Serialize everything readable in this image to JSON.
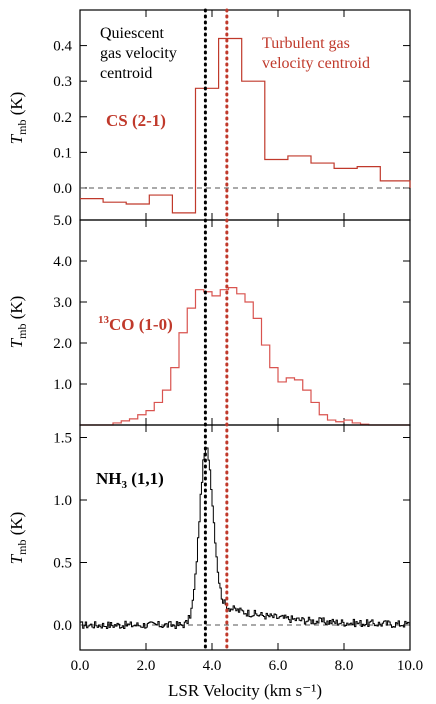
{
  "chart_data": {
    "type": "line",
    "xlabel": "LSR Velocity (km s⁻¹)",
    "xlim": [
      0,
      10
    ],
    "x_ticks": [
      "0.0",
      "2.0",
      "4.0",
      "6.0",
      "8.0",
      "10.0"
    ],
    "x_tick_values": [
      0,
      2,
      4,
      6,
      8,
      10
    ],
    "colors": {
      "cs": "#c0392b",
      "co": "#d9534f",
      "nh3": "#000000",
      "quiescent": "#000000",
      "turbulent": "#c0392b"
    },
    "vlines": [
      {
        "x": 3.8,
        "style": "dotted",
        "color": "#000000"
      },
      {
        "x": 4.45,
        "style": "dotted",
        "color": "#c0392b"
      }
    ],
    "annotations": {
      "quiescent": [
        "Quiescent",
        "gas velocity",
        "centroid"
      ],
      "turbulent": [
        "Turbulent gas",
        "velocity centroid"
      ]
    },
    "panels": [
      {
        "id": "cs",
        "ylabel_main": "T",
        "ylabel_sub": "mb",
        "ylabel_unit": " (K)",
        "ylim": [
          -0.09,
          0.5
        ],
        "y_ticks": [
          "0.4",
          "0.3",
          "0.2",
          "0.1",
          "0.0"
        ],
        "y_tick_values": [
          0.4,
          0.3,
          0.2,
          0.1,
          0.0
        ],
        "line_label": "CS (2-1)",
        "zero_line": true,
        "step": true,
        "series": {
          "name": "CS (2-1)",
          "x": [
            0.0,
            0.7,
            1.4,
            2.1,
            2.8,
            3.5,
            4.2,
            4.9,
            5.6,
            6.3,
            7.0,
            7.7,
            8.4,
            9.1,
            10.0
          ],
          "y": [
            -0.03,
            -0.04,
            -0.045,
            -0.02,
            -0.07,
            0.28,
            0.42,
            0.3,
            0.08,
            0.09,
            0.07,
            0.055,
            0.06,
            0.02,
            0.0
          ]
        }
      },
      {
        "id": "co",
        "ylabel_main": "T",
        "ylabel_sub": "mb",
        "ylabel_unit": " (K)",
        "ylim": [
          0,
          5.0
        ],
        "y_ticks": [
          "5.0",
          "4.0",
          "3.0",
          "2.0",
          "1.0"
        ],
        "y_tick_values": [
          5.0,
          4.0,
          3.0,
          2.0,
          1.0
        ],
        "line_label_sup": "13",
        "line_label": "CO (1-0)",
        "zero_line": false,
        "step": true,
        "series": {
          "name": "13CO (1-0)",
          "x": [
            0.0,
            0.25,
            0.5,
            0.75,
            1.0,
            1.25,
            1.5,
            1.75,
            2.0,
            2.25,
            2.5,
            2.75,
            3.0,
            3.25,
            3.5,
            3.75,
            4.0,
            4.25,
            4.5,
            4.75,
            5.0,
            5.25,
            5.5,
            5.75,
            6.0,
            6.25,
            6.5,
            6.75,
            7.0,
            7.25,
            7.5,
            7.75,
            8.0,
            8.25,
            8.5,
            8.75,
            9.0,
            9.25,
            9.5,
            9.75
          ],
          "y": [
            0.0,
            0.0,
            0.0,
            0.0,
            0.05,
            0.1,
            0.15,
            0.25,
            0.35,
            0.55,
            0.85,
            1.4,
            2.25,
            2.85,
            3.3,
            3.25,
            3.15,
            3.3,
            3.35,
            3.2,
            3.0,
            2.6,
            1.95,
            1.4,
            1.05,
            1.15,
            1.1,
            0.85,
            0.55,
            0.25,
            0.12,
            0.08,
            0.12,
            0.05,
            0.02,
            0.0,
            0.0,
            0.0,
            0.0,
            0.0
          ]
        }
      },
      {
        "id": "nh3",
        "ylabel_main": "T",
        "ylabel_sub": "mb",
        "ylabel_unit": " (K)",
        "ylim": [
          -0.2,
          1.6
        ],
        "y_ticks": [
          "1.5",
          "1.0",
          "0.5",
          "0.0"
        ],
        "y_tick_values": [
          1.5,
          1.0,
          0.5,
          0.0
        ],
        "line_label": "NH",
        "line_label_subscript": "3",
        "line_label_suffix": " (1,1)",
        "zero_line": true,
        "step": true,
        "series": {
          "name": "NH3 (1,1)",
          "peak_center": 3.8,
          "peak_height": 1.4,
          "peak_width": 0.2,
          "wing_level": 0.2
        }
      }
    ]
  }
}
